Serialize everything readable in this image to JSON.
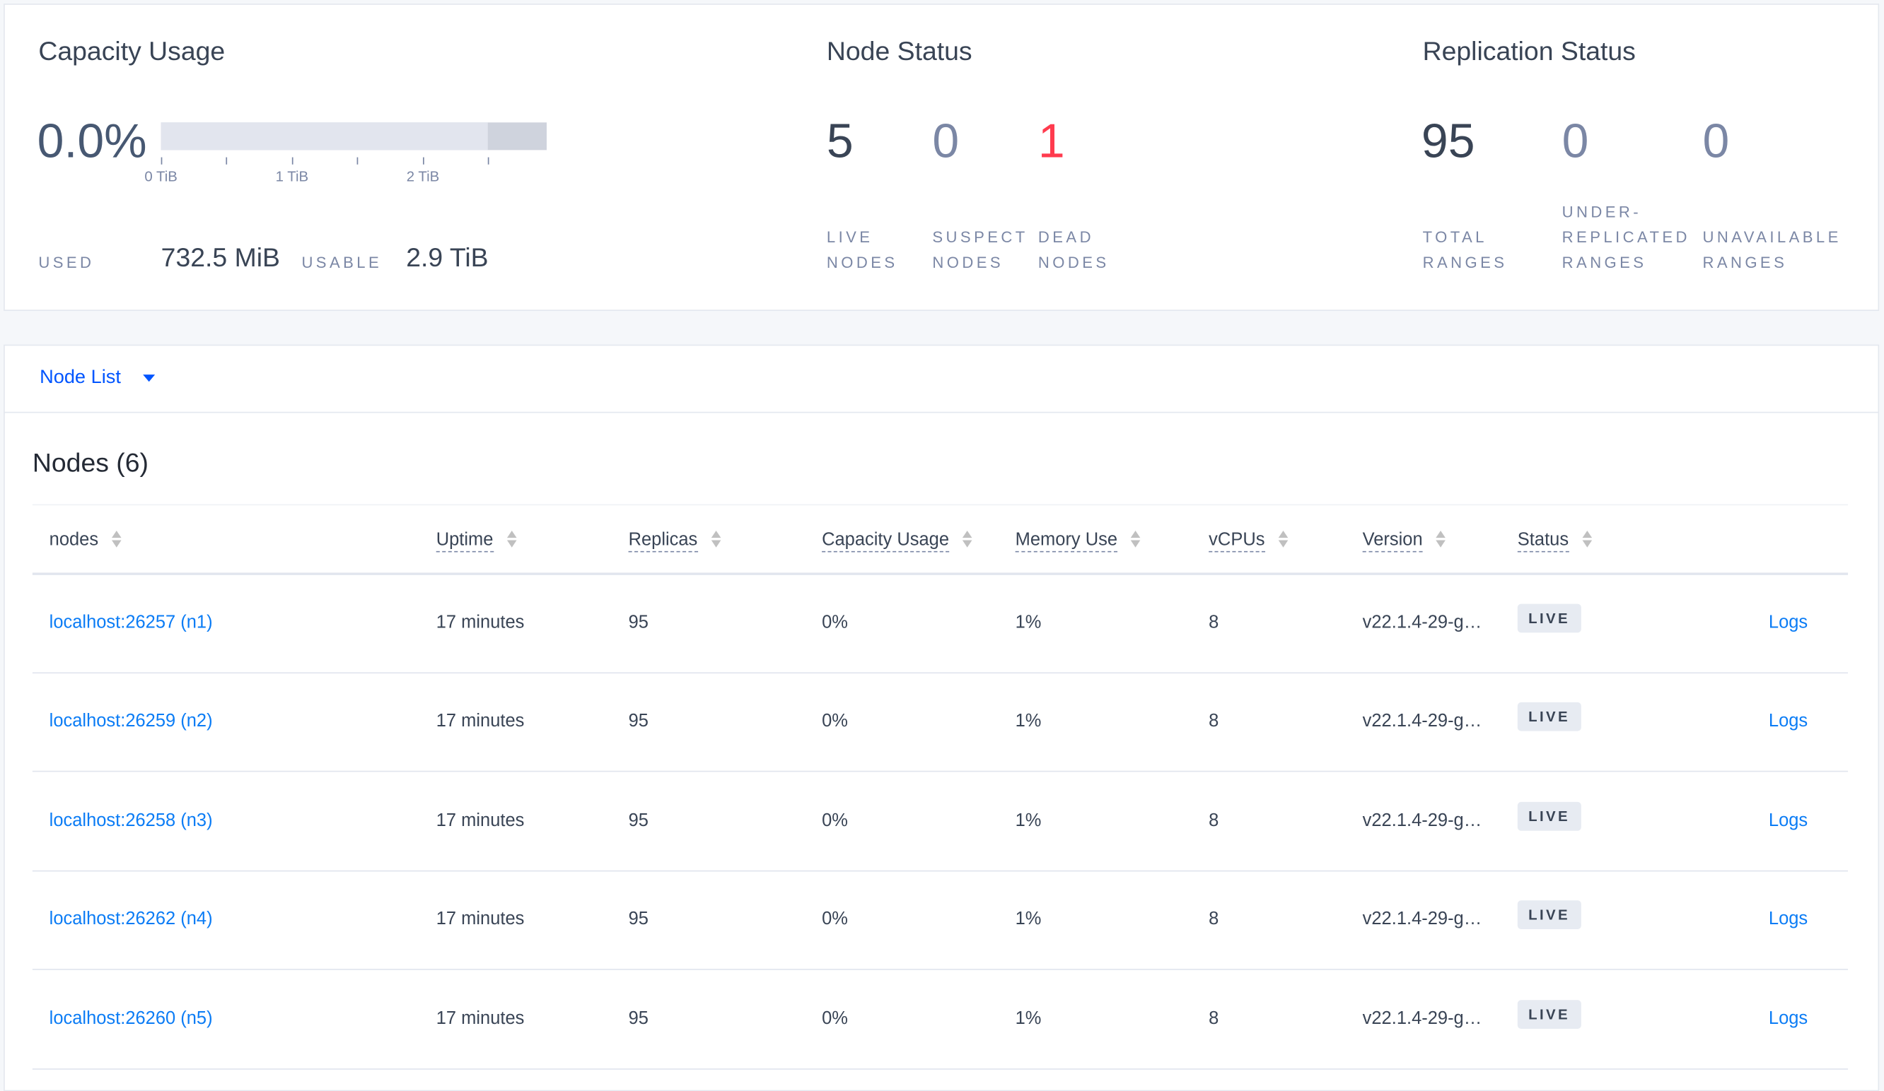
{
  "capacity": {
    "title": "Capacity Usage",
    "percent": "0.0%",
    "used_fraction_of_usable": 0.0,
    "axis_ticks": [
      "0 TiB",
      "1 TiB",
      "2 TiB"
    ],
    "used_label": "USED",
    "used_value": "732.5 MiB",
    "usable_label": "USABLE",
    "usable_value": "2.9 TiB"
  },
  "node_status": {
    "title": "Node Status",
    "live": {
      "value": "5",
      "label1": "LIVE",
      "label2": "NODES"
    },
    "suspect": {
      "value": "0",
      "label1": "SUSPECT",
      "label2": "NODES"
    },
    "dead": {
      "value": "1",
      "label1": "DEAD",
      "label2": "NODES"
    }
  },
  "replication": {
    "title": "Replication Status",
    "total": {
      "value": "95",
      "label1": "TOTAL",
      "label2": "RANGES"
    },
    "under": {
      "value": "0",
      "label0": "UNDER-",
      "label1": "REPLICATED",
      "label2": "RANGES"
    },
    "unavailable": {
      "value": "0",
      "label1": "UNAVAILABLE",
      "label2": "RANGES"
    }
  },
  "colors": {
    "accent": "#0055ff",
    "link": "#0b7cf5",
    "dead": "#ff3b4e",
    "text": "#394455",
    "muted": "#7b87a5"
  },
  "view_select": {
    "label": "Node List"
  },
  "nodes": {
    "heading": "Nodes (6)",
    "columns": [
      "nodes",
      "Uptime",
      "Replicas",
      "Capacity Usage",
      "Memory Use",
      "vCPUs",
      "Version",
      "Status"
    ],
    "rows": [
      {
        "node": "localhost:26257 (n1)",
        "uptime": "17 minutes",
        "replicas": "95",
        "capacity": "0%",
        "memory": "1%",
        "vcpus": "8",
        "version": "v22.1.4-29-g…",
        "status": "LIVE",
        "logs": "Logs"
      },
      {
        "node": "localhost:26259 (n2)",
        "uptime": "17 minutes",
        "replicas": "95",
        "capacity": "0%",
        "memory": "1%",
        "vcpus": "8",
        "version": "v22.1.4-29-g…",
        "status": "LIVE",
        "logs": "Logs"
      },
      {
        "node": "localhost:26258 (n3)",
        "uptime": "17 minutes",
        "replicas": "95",
        "capacity": "0%",
        "memory": "1%",
        "vcpus": "8",
        "version": "v22.1.4-29-g…",
        "status": "LIVE",
        "logs": "Logs"
      },
      {
        "node": "localhost:26262 (n4)",
        "uptime": "17 minutes",
        "replicas": "95",
        "capacity": "0%",
        "memory": "1%",
        "vcpus": "8",
        "version": "v22.1.4-29-g…",
        "status": "LIVE",
        "logs": "Logs"
      },
      {
        "node": "localhost:26260 (n5)",
        "uptime": "17 minutes",
        "replicas": "95",
        "capacity": "0%",
        "memory": "1%",
        "vcpus": "8",
        "version": "v22.1.4-29-g…",
        "status": "LIVE",
        "logs": "Logs"
      }
    ]
  }
}
